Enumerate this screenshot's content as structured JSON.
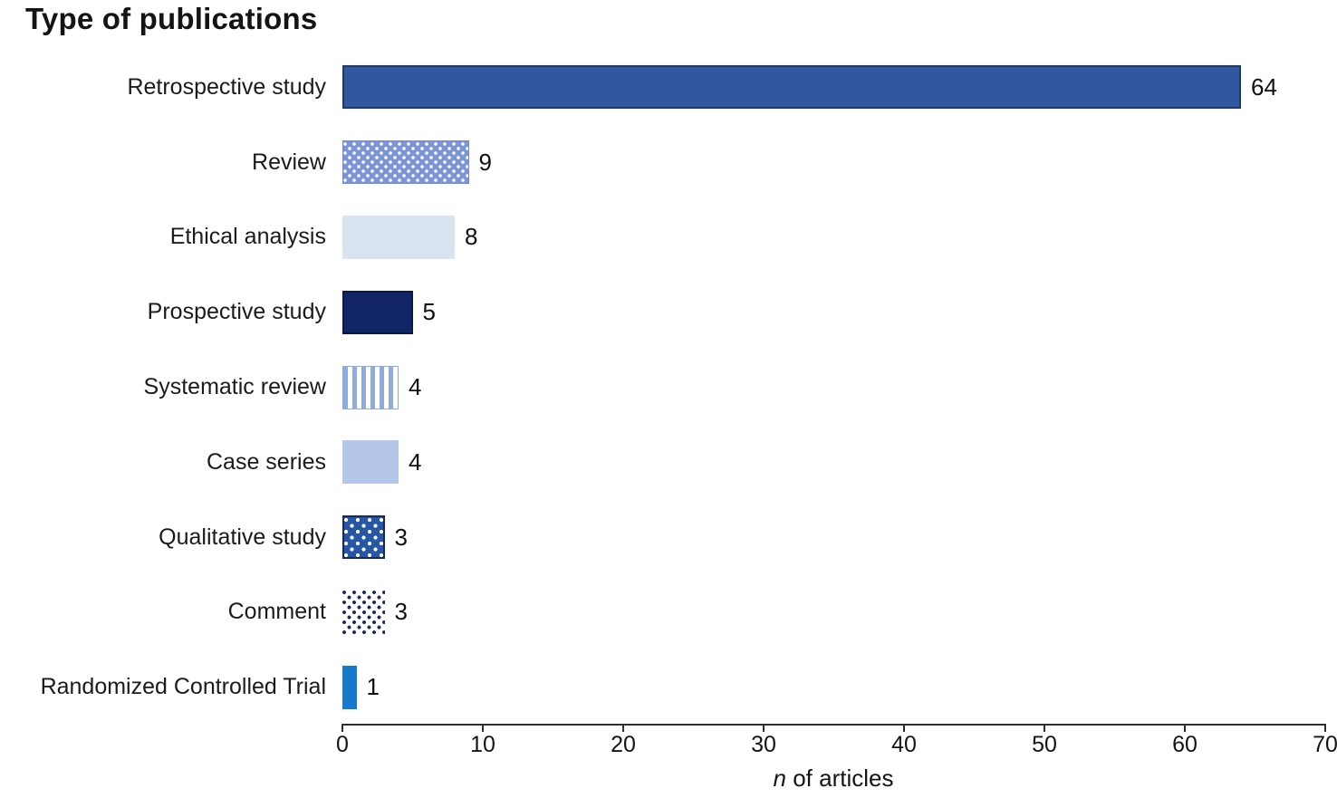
{
  "chart_data": {
    "type": "bar",
    "orientation": "horizontal",
    "title": "Type of publications",
    "xlabel_italic": "n",
    "xlabel_rest": " of articles",
    "xlim": [
      0,
      70
    ],
    "ticks": [
      0,
      10,
      20,
      30,
      40,
      50,
      60,
      70
    ],
    "grid": false,
    "legend": "none",
    "categories": [
      "Retrospective study",
      "Review",
      "Ethical analysis",
      "Prospective study",
      "Systematic review",
      "Case series",
      "Qualitative study",
      "Comment",
      "Randomized Controlled Trial"
    ],
    "values": [
      64,
      9,
      8,
      5,
      4,
      4,
      3,
      3,
      1
    ],
    "bars": [
      {
        "label": "Retrospective study",
        "value": 64,
        "pattern": "solid",
        "fill": "#31589E",
        "border": "#1F3864"
      },
      {
        "label": "Review",
        "value": 9,
        "pattern": "dots-white",
        "fill": "#7B96D6",
        "border": "#6F8BCB",
        "dot": "#FFFFFF"
      },
      {
        "label": "Ethical analysis",
        "value": 8,
        "pattern": "solid",
        "fill": "#DAE4F1",
        "border": null
      },
      {
        "label": "Prospective study",
        "value": 5,
        "pattern": "solid",
        "fill": "#122566",
        "border": "#0B1A45"
      },
      {
        "label": "Systematic review",
        "value": 4,
        "pattern": "stripes-vertical",
        "fill": "#8FABDC",
        "border": "#8FABDC",
        "stripe_bg": "#FFFFFF"
      },
      {
        "label": "Case series",
        "value": 4,
        "pattern": "solid",
        "fill": "#B4C7E9",
        "border": null
      },
      {
        "label": "Qualitative study",
        "value": 3,
        "pattern": "dots-white",
        "fill": "#2656A4",
        "border": "#16295C",
        "dot": "#FFFFFF"
      },
      {
        "label": "Comment",
        "value": 3,
        "pattern": "dots-dark",
        "fill": "#FFFFFF",
        "border": null,
        "dot": "#1A2A5A"
      },
      {
        "label": "Randomized Controlled Trial",
        "value": 1,
        "pattern": "solid",
        "fill": "#1779C9",
        "border": null
      }
    ],
    "axis_color": "#2E2E2E",
    "text_color": "#1B1B1B"
  }
}
